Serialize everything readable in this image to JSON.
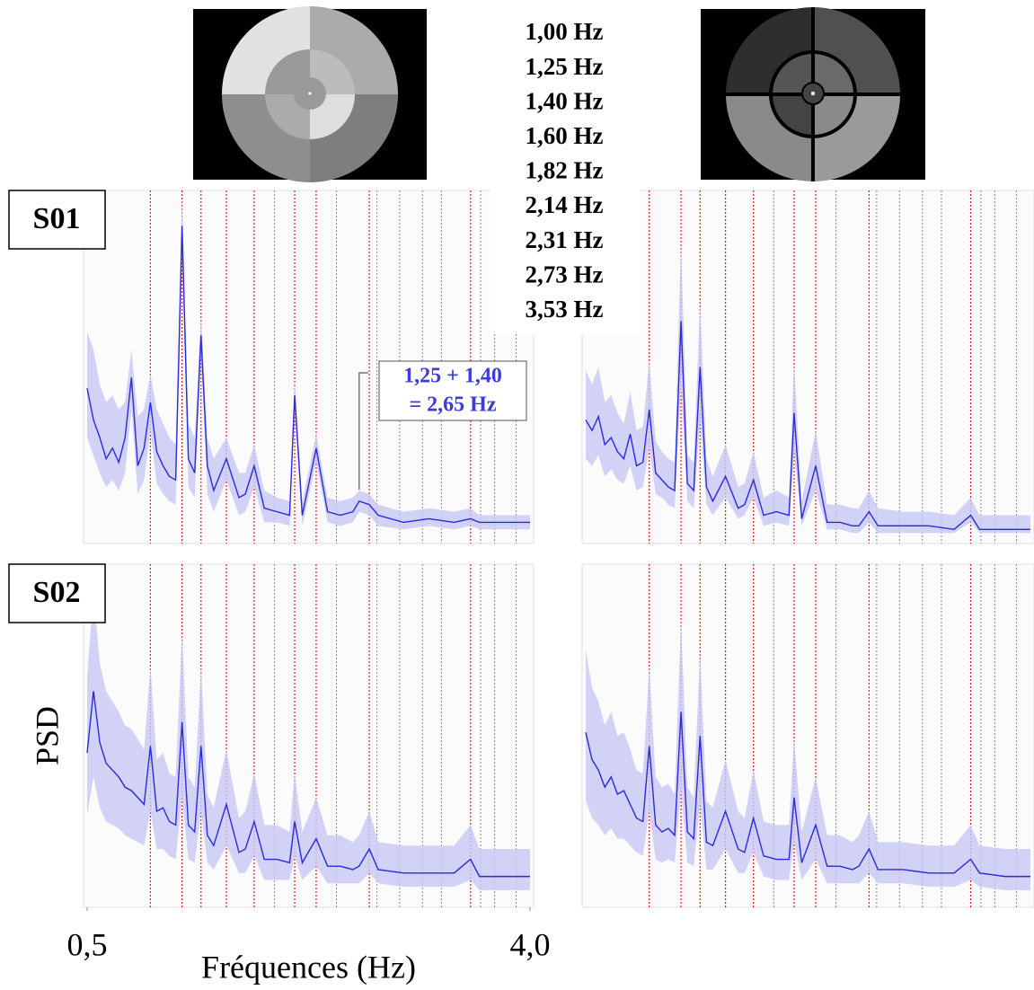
{
  "frequency_list": [
    "1,00 Hz",
    "1,25 Hz",
    "1,40 Hz",
    "1,60 Hz",
    "1,82 Hz",
    "2,14 Hz",
    "2,31 Hz",
    "2,73 Hz",
    "3,53 Hz"
  ],
  "chart_data": [
    {
      "type": "line",
      "subject": "S01",
      "color": "#2a2ad8",
      "band_color": "#c8c8f6",
      "xlim": [
        0.5,
        4.0
      ],
      "ylim": [
        0,
        10
      ],
      "markers": [
        1.0,
        1.25,
        1.4,
        1.6,
        1.82,
        2.14,
        2.31,
        2.73,
        3.53
      ],
      "gray_lines": [
        1.98,
        2.47,
        2.79,
        2.97,
        3.15,
        3.3,
        3.61,
        3.72,
        3.89
      ],
      "annotation": {
        "lines": [
          "1,25 + 1,40",
          "= 2,65 Hz"
        ],
        "x": 2.65
      },
      "x": [
        0.5,
        0.55,
        0.6,
        0.65,
        0.7,
        0.75,
        0.8,
        0.85,
        0.9,
        0.95,
        1.0,
        1.05,
        1.1,
        1.15,
        1.2,
        1.25,
        1.3,
        1.35,
        1.4,
        1.45,
        1.5,
        1.6,
        1.7,
        1.75,
        1.82,
        1.9,
        2.0,
        2.1,
        2.14,
        2.2,
        2.31,
        2.4,
        2.5,
        2.6,
        2.65,
        2.73,
        2.8,
        3.0,
        3.2,
        3.4,
        3.53,
        3.6,
        3.8,
        4.0
      ],
      "values": [
        4.4,
        3.5,
        3.0,
        2.4,
        2.7,
        2.3,
        3.0,
        4.7,
        2.2,
        2.7,
        4.0,
        2.6,
        2.2,
        1.9,
        1.8,
        9.0,
        2.4,
        2.0,
        5.9,
        2.2,
        1.5,
        2.4,
        1.3,
        1.4,
        2.2,
        1.0,
        0.9,
        0.8,
        4.2,
        0.8,
        2.7,
        0.9,
        0.8,
        0.9,
        1.2,
        1.1,
        0.8,
        0.6,
        0.7,
        0.6,
        0.7,
        0.6,
        0.6,
        0.6
      ],
      "upper": [
        6.0,
        5.5,
        4.5,
        4.0,
        4.2,
        3.8,
        4.0,
        5.5,
        3.6,
        3.8,
        4.8,
        3.8,
        3.4,
        3.0,
        2.8,
        9.8,
        3.4,
        3.0,
        6.4,
        3.0,
        2.4,
        3.0,
        2.0,
        2.0,
        2.8,
        1.5,
        1.3,
        1.2,
        4.6,
        1.2,
        3.1,
        1.3,
        1.2,
        1.3,
        1.5,
        1.4,
        1.1,
        0.9,
        1.0,
        0.9,
        1.0,
        0.8,
        0.8,
        0.8
      ],
      "lower": [
        3.0,
        2.5,
        2.0,
        1.6,
        1.8,
        1.5,
        2.0,
        3.8,
        1.4,
        1.8,
        3.2,
        1.7,
        1.4,
        1.2,
        1.1,
        8.2,
        1.6,
        1.3,
        5.3,
        1.4,
        0.9,
        1.8,
        0.8,
        0.9,
        1.6,
        0.6,
        0.6,
        0.5,
        3.8,
        0.5,
        2.3,
        0.6,
        0.5,
        0.6,
        0.9,
        0.8,
        0.5,
        0.4,
        0.5,
        0.4,
        0.5,
        0.4,
        0.4,
        0.4
      ]
    },
    {
      "type": "line",
      "color": "#2a2ad8",
      "band_color": "#c8c8f6",
      "xlim": [
        0.5,
        4.0
      ],
      "ylim": [
        0,
        10
      ],
      "markers": [
        1.0,
        1.25,
        1.4,
        1.6,
        1.82,
        2.14,
        2.31,
        2.73,
        3.53
      ],
      "gray_lines": [
        1.98,
        2.47,
        2.79,
        2.97,
        3.15,
        3.3,
        3.61,
        3.72,
        3.89
      ],
      "x": [
        0.5,
        0.55,
        0.6,
        0.65,
        0.7,
        0.75,
        0.8,
        0.85,
        0.9,
        0.95,
        1.0,
        1.05,
        1.1,
        1.15,
        1.2,
        1.25,
        1.3,
        1.35,
        1.4,
        1.45,
        1.5,
        1.6,
        1.7,
        1.75,
        1.82,
        1.9,
        2.0,
        2.1,
        2.14,
        2.2,
        2.31,
        2.4,
        2.5,
        2.6,
        2.65,
        2.73,
        2.8,
        3.0,
        3.2,
        3.4,
        3.53,
        3.6,
        3.8,
        4.0
      ],
      "values": [
        3.5,
        3.2,
        3.6,
        2.8,
        3.0,
        2.6,
        2.4,
        3.1,
        2.2,
        2.3,
        3.8,
        2.0,
        1.8,
        1.6,
        1.5,
        6.3,
        1.7,
        1.5,
        5.0,
        1.6,
        1.2,
        1.9,
        1.0,
        1.1,
        1.8,
        0.8,
        0.9,
        0.8,
        3.7,
        0.7,
        2.2,
        0.6,
        0.6,
        0.5,
        0.5,
        0.9,
        0.5,
        0.5,
        0.5,
        0.4,
        0.8,
        0.4,
        0.4,
        0.4
      ],
      "upper": [
        4.9,
        4.5,
        5.0,
        4.0,
        4.2,
        3.7,
        3.4,
        4.3,
        3.2,
        3.3,
        5.2,
        2.9,
        2.6,
        2.4,
        2.3,
        8.5,
        2.5,
        2.3,
        6.8,
        2.4,
        1.9,
        2.8,
        1.6,
        1.7,
        2.6,
        1.3,
        1.5,
        1.3,
        5.1,
        1.2,
        3.2,
        1.1,
        1.1,
        1.0,
        1.0,
        1.5,
        1.0,
        0.9,
        0.9,
        0.8,
        1.3,
        0.8,
        0.8,
        0.8
      ],
      "lower": [
        2.4,
        2.2,
        2.5,
        1.9,
        2.1,
        1.8,
        1.7,
        2.2,
        1.5,
        1.6,
        2.7,
        1.4,
        1.3,
        1.1,
        1.0,
        4.4,
        1.2,
        1.0,
        3.5,
        1.1,
        0.8,
        1.3,
        0.7,
        0.8,
        1.3,
        0.5,
        0.6,
        0.5,
        2.6,
        0.5,
        1.5,
        0.4,
        0.4,
        0.3,
        0.3,
        0.6,
        0.3,
        0.3,
        0.3,
        0.3,
        0.6,
        0.3,
        0.3,
        0.3
      ]
    },
    {
      "type": "line",
      "subject": "S02",
      "color": "#2a2ad8",
      "band_color": "#c8c8f6",
      "xlabel": "Fréquences (Hz)",
      "ylabel": "PSD",
      "xlim": [
        0.5,
        4.0
      ],
      "ylim": [
        0,
        10
      ],
      "xticks": [
        {
          "value": 0.5,
          "label": "0,5"
        },
        {
          "value": 4.0,
          "label": "4,0"
        }
      ],
      "markers": [
        1.0,
        1.25,
        1.4,
        1.6,
        1.82,
        2.14,
        2.31,
        2.73,
        3.53
      ],
      "gray_lines": [
        1.98,
        2.47,
        2.79,
        2.97,
        3.15,
        3.3,
        3.61,
        3.72,
        3.89
      ],
      "x": [
        0.5,
        0.55,
        0.6,
        0.65,
        0.7,
        0.75,
        0.8,
        0.85,
        0.9,
        0.95,
        1.0,
        1.05,
        1.1,
        1.15,
        1.2,
        1.25,
        1.3,
        1.35,
        1.4,
        1.45,
        1.5,
        1.6,
        1.7,
        1.75,
        1.82,
        1.9,
        2.0,
        2.1,
        2.14,
        2.2,
        2.31,
        2.4,
        2.5,
        2.6,
        2.65,
        2.73,
        2.8,
        3.0,
        3.2,
        3.4,
        3.53,
        3.6,
        3.8,
        4.0
      ],
      "values": [
        4.5,
        6.3,
        4.8,
        4.2,
        4.0,
        3.8,
        3.5,
        3.4,
        3.2,
        3.0,
        4.7,
        2.8,
        2.9,
        2.5,
        2.4,
        5.4,
        2.4,
        2.2,
        4.7,
        2.1,
        1.8,
        3.0,
        1.6,
        1.7,
        2.5,
        1.4,
        1.4,
        1.3,
        2.5,
        1.3,
        2.0,
        1.2,
        1.2,
        1.1,
        1.2,
        1.7,
        1.1,
        1.0,
        1.0,
        1.0,
        1.4,
        0.9,
        0.9,
        0.9
      ],
      "upper": [
        6.7,
        9.2,
        7.1,
        6.3,
        6.0,
        5.7,
        5.3,
        5.2,
        4.9,
        4.6,
        7.0,
        4.3,
        4.5,
        3.9,
        3.8,
        8.0,
        3.8,
        3.5,
        7.0,
        3.3,
        2.9,
        4.6,
        2.6,
        2.8,
        3.9,
        2.4,
        2.4,
        2.2,
        3.9,
        2.2,
        3.2,
        2.1,
        2.1,
        1.9,
        2.1,
        2.8,
        1.9,
        1.8,
        1.8,
        1.8,
        2.4,
        1.7,
        1.7,
        1.7
      ],
      "lower": [
        2.7,
        3.8,
        2.9,
        2.5,
        2.4,
        2.3,
        2.1,
        2.0,
        1.9,
        1.8,
        2.8,
        1.7,
        1.7,
        1.5,
        1.4,
        3.2,
        1.4,
        1.3,
        2.8,
        1.3,
        1.1,
        1.8,
        1.0,
        1.0,
        1.5,
        0.8,
        0.8,
        0.8,
        1.5,
        0.8,
        1.2,
        0.7,
        0.7,
        0.7,
        0.7,
        1.0,
        0.7,
        0.6,
        0.6,
        0.6,
        0.8,
        0.5,
        0.5,
        0.5
      ]
    },
    {
      "type": "line",
      "color": "#2a2ad8",
      "band_color": "#c8c8f6",
      "xlim": [
        0.5,
        4.0
      ],
      "ylim": [
        0,
        10
      ],
      "markers": [
        1.0,
        1.25,
        1.4,
        1.6,
        1.82,
        2.14,
        2.31,
        2.73,
        3.53
      ],
      "gray_lines": [
        1.98,
        2.47,
        2.79,
        2.97,
        3.15,
        3.3,
        3.61,
        3.72,
        3.89
      ],
      "x": [
        0.5,
        0.55,
        0.6,
        0.65,
        0.7,
        0.75,
        0.8,
        0.85,
        0.9,
        0.95,
        1.0,
        1.05,
        1.1,
        1.15,
        1.2,
        1.25,
        1.3,
        1.35,
        1.4,
        1.45,
        1.5,
        1.6,
        1.7,
        1.75,
        1.82,
        1.9,
        2.0,
        2.1,
        2.14,
        2.2,
        2.31,
        2.4,
        2.5,
        2.6,
        2.65,
        2.73,
        2.8,
        3.0,
        3.2,
        3.4,
        3.53,
        3.6,
        3.8,
        4.0
      ],
      "values": [
        5.1,
        4.3,
        4.0,
        3.5,
        3.8,
        3.3,
        3.4,
        3.0,
        2.6,
        2.5,
        4.7,
        2.4,
        2.2,
        2.3,
        2.1,
        5.7,
        2.2,
        2.0,
        5.0,
        1.9,
        1.8,
        2.8,
        1.7,
        1.6,
        2.6,
        1.5,
        1.4,
        1.4,
        3.2,
        1.3,
        2.4,
        1.2,
        1.2,
        1.1,
        1.2,
        1.7,
        1.1,
        1.1,
        1.0,
        1.0,
        1.4,
        1.0,
        0.9,
        0.9
      ],
      "upper": [
        7.5,
        6.4,
        6.0,
        5.3,
        5.7,
        5.0,
        5.1,
        4.6,
        4.0,
        3.9,
        7.0,
        3.8,
        3.5,
        3.6,
        3.3,
        8.4,
        3.5,
        3.2,
        7.4,
        3.1,
        2.9,
        4.3,
        2.8,
        2.6,
        4.0,
        2.5,
        2.4,
        2.4,
        4.9,
        2.2,
        3.8,
        2.1,
        2.1,
        1.9,
        2.1,
        2.8,
        1.9,
        1.9,
        1.8,
        1.8,
        2.4,
        1.8,
        1.7,
        1.7
      ],
      "lower": [
        3.1,
        2.6,
        2.4,
        2.1,
        2.3,
        2.0,
        2.0,
        1.8,
        1.6,
        1.5,
        2.8,
        1.4,
        1.3,
        1.4,
        1.3,
        3.4,
        1.3,
        1.2,
        3.0,
        1.1,
        1.1,
        1.7,
        1.0,
        1.0,
        1.6,
        0.9,
        0.8,
        0.8,
        1.9,
        0.8,
        1.4,
        0.7,
        0.7,
        0.7,
        0.7,
        1.0,
        0.7,
        0.7,
        0.6,
        0.6,
        0.8,
        0.6,
        0.5,
        0.5
      ]
    }
  ]
}
